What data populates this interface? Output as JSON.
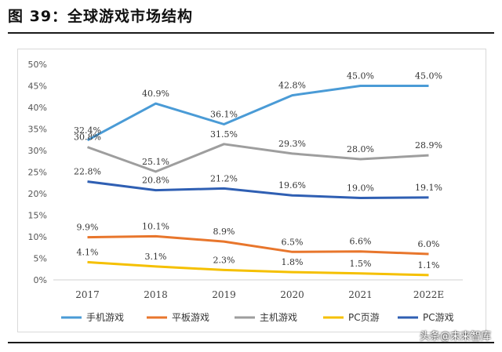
{
  "figure": {
    "title": "图 39：全球游戏市场结构"
  },
  "watermark": "头条@未来智库",
  "chart_data": {
    "type": "line",
    "categories": [
      "2017",
      "2018",
      "2019",
      "2020",
      "2021",
      "2022E"
    ],
    "ylim": [
      0,
      50
    ],
    "yticks": [
      "0%",
      "5%",
      "10%",
      "15%",
      "20%",
      "25%",
      "30%",
      "35%",
      "40%",
      "45%",
      "50%"
    ],
    "grid": false,
    "legend_position": "bottom",
    "series": [
      {
        "name": "手机游戏",
        "color": "#4a9bd6",
        "values": [
          32.4,
          40.9,
          36.1,
          42.8,
          45.0,
          45.0
        ],
        "labels": [
          "32.4%",
          "40.9%",
          "36.1%",
          "42.8%",
          "45.0%",
          "45.0%"
        ]
      },
      {
        "name": "平板游戏",
        "color": "#e8762c",
        "values": [
          9.9,
          10.1,
          8.9,
          6.5,
          6.6,
          6.0
        ],
        "labels": [
          "9.9%",
          "10.1%",
          "8.9%",
          "6.5%",
          "6.6%",
          "6.0%"
        ]
      },
      {
        "name": "主机游戏",
        "color": "#9e9e9e",
        "values": [
          30.8,
          25.1,
          31.5,
          29.3,
          28.0,
          28.9
        ],
        "labels": [
          "30.8%",
          "25.1%",
          "31.5%",
          "29.3%",
          "28.0%",
          "28.9%"
        ]
      },
      {
        "name": "PC页游",
        "color": "#f5c000",
        "values": [
          4.1,
          3.1,
          2.3,
          1.8,
          1.5,
          1.1
        ],
        "labels": [
          "4.1%",
          "3.1%",
          "2.3%",
          "1.8%",
          "1.5%",
          "1.1%"
        ]
      },
      {
        "name": "PC游戏",
        "color": "#2f5fb3",
        "values": [
          22.8,
          20.8,
          21.2,
          19.6,
          19.0,
          19.1
        ],
        "labels": [
          "22.8%",
          "20.8%",
          "21.2%",
          "19.6%",
          "19.0%",
          "19.1%"
        ]
      }
    ]
  }
}
